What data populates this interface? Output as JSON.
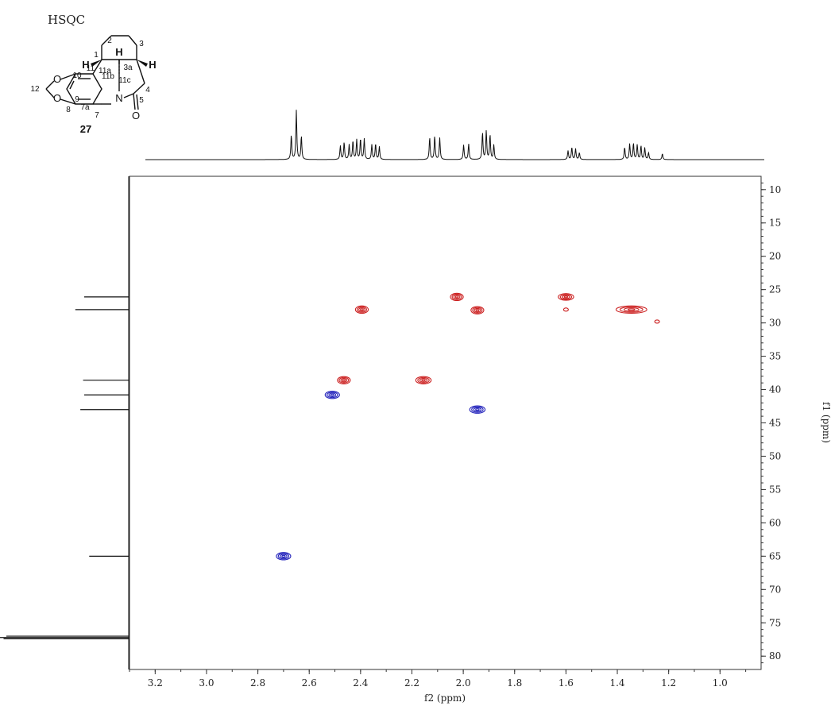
{
  "chart_data": {
    "type": "heatmap",
    "title": "HSQC",
    "xlabel": "f2 (ppm)",
    "ylabel": "f1 (ppm)",
    "xlim": [
      3.3,
      0.84
    ],
    "ylim": [
      8,
      82
    ],
    "x_ticks": [
      "3.2",
      "3.0",
      "2.8",
      "2.6",
      "2.4",
      "2.2",
      "2.0",
      "1.8",
      "1.6",
      "1.4",
      "1.2",
      "1.0"
    ],
    "y_ticks": [
      "10",
      "15",
      "20",
      "25",
      "30",
      "35",
      "40",
      "45",
      "50",
      "55",
      "60",
      "65",
      "70",
      "75",
      "80"
    ],
    "series": [
      {
        "color": "#cc2222",
        "peaks": [
          {
            "x": 2.395,
            "y": 28.0,
            "w": 0.025,
            "h": 0.55
          },
          {
            "x": 2.025,
            "y": 26.1,
            "w": 0.025,
            "h": 0.55
          },
          {
            "x": 1.945,
            "y": 28.1,
            "w": 0.025,
            "h": 0.55
          },
          {
            "x": 1.6,
            "y": 26.1,
            "w": 0.03,
            "h": 0.5
          },
          {
            "x": 1.6,
            "y": 28.0,
            "w": 0.005,
            "h": 0.15
          },
          {
            "x": 1.345,
            "y": 28.0,
            "w": 0.06,
            "h": 0.55
          },
          {
            "x": 1.245,
            "y": 29.8,
            "w": 0.004,
            "h": 0.18
          },
          {
            "x": 2.465,
            "y": 38.6,
            "w": 0.025,
            "h": 0.55
          },
          {
            "x": 2.155,
            "y": 38.6,
            "w": 0.03,
            "h": 0.55
          }
        ]
      },
      {
        "color": "#2222bb",
        "peaks": [
          {
            "x": 2.51,
            "y": 40.8,
            "w": 0.028,
            "h": 0.55
          },
          {
            "x": 1.945,
            "y": 43.0,
            "w": 0.03,
            "h": 0.55
          },
          {
            "x": 2.7,
            "y": 65.0,
            "w": 0.028,
            "h": 0.55
          }
        ]
      }
    ],
    "projection_f2": {
      "peaks": [
        {
          "x": 2.72,
          "h": 0.5
        },
        {
          "x": 2.7,
          "h": 1.0
        },
        {
          "x": 2.68,
          "h": 0.48
        },
        {
          "x": 2.525,
          "h": 0.28
        },
        {
          "x": 2.51,
          "h": 0.35
        },
        {
          "x": 2.49,
          "h": 0.3
        },
        {
          "x": 2.475,
          "h": 0.38
        },
        {
          "x": 2.46,
          "h": 0.4
        },
        {
          "x": 2.445,
          "h": 0.42
        },
        {
          "x": 2.43,
          "h": 0.42
        },
        {
          "x": 2.4,
          "h": 0.3
        },
        {
          "x": 2.385,
          "h": 0.32
        },
        {
          "x": 2.37,
          "h": 0.26
        },
        {
          "x": 2.17,
          "h": 0.45
        },
        {
          "x": 2.15,
          "h": 0.48
        },
        {
          "x": 2.13,
          "h": 0.44
        },
        {
          "x": 2.035,
          "h": 0.3
        },
        {
          "x": 2.015,
          "h": 0.32
        },
        {
          "x": 1.96,
          "h": 0.55
        },
        {
          "x": 1.945,
          "h": 0.58
        },
        {
          "x": 1.93,
          "h": 0.5
        },
        {
          "x": 1.915,
          "h": 0.3
        },
        {
          "x": 1.62,
          "h": 0.18
        },
        {
          "x": 1.605,
          "h": 0.25
        },
        {
          "x": 1.59,
          "h": 0.22
        },
        {
          "x": 1.575,
          "h": 0.14
        },
        {
          "x": 1.395,
          "h": 0.25
        },
        {
          "x": 1.375,
          "h": 0.32
        },
        {
          "x": 1.36,
          "h": 0.33
        },
        {
          "x": 1.345,
          "h": 0.3
        },
        {
          "x": 1.33,
          "h": 0.28
        },
        {
          "x": 1.315,
          "h": 0.24
        },
        {
          "x": 1.3,
          "h": 0.14
        },
        {
          "x": 1.245,
          "h": 0.12
        }
      ]
    },
    "projection_f1": {
      "peaks": [
        {
          "y": 26.1,
          "h": 0.8
        },
        {
          "y": 28.0,
          "h": 0.96
        },
        {
          "y": 38.6,
          "h": 0.82
        },
        {
          "y": 40.8,
          "h": 0.8
        },
        {
          "y": 43.0,
          "h": 0.87
        },
        {
          "y": 65.0,
          "h": 0.71
        },
        {
          "y": 77.0,
          "h": 2.2
        },
        {
          "y": 77.2,
          "h": 2.4
        },
        {
          "y": 77.4,
          "h": 2.25
        }
      ]
    }
  },
  "structure": {
    "compound_number": "27",
    "atom_labels": {
      "c1": "1",
      "c2": "2",
      "c3": "3",
      "c3a": "3a",
      "c4": "4",
      "c5": "5",
      "c7": "7",
      "c7a": "7a",
      "c8": "8",
      "c9": "9",
      "c10": "10",
      "c11": "11",
      "c11a": "11a",
      "c11b": "11b",
      "c11c": "11c",
      "c12": "12"
    },
    "heteroatoms": {
      "n": "N",
      "o_carbonyl": "O",
      "o_top": "O",
      "o_bottom": "O"
    },
    "hydrogens": {
      "h11b": "H",
      "h11c": "H",
      "h3a": "H"
    }
  }
}
